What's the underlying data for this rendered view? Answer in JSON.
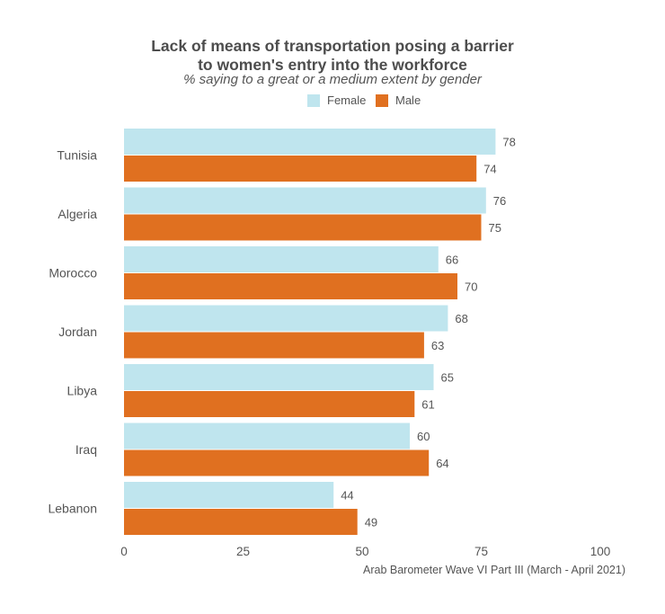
{
  "chart_data": {
    "type": "bar",
    "orientation": "horizontal",
    "title_line1": "Lack of means of transportation posing a barrier",
    "title_line2": "to women's entry into the workforce",
    "subtitle": "% saying to a great or a medium extent by gender",
    "categories": [
      "Tunisia",
      "Algeria",
      "Morocco",
      "Jordan",
      "Libya",
      "Iraq",
      "Lebanon"
    ],
    "series": [
      {
        "name": "Female",
        "color": "#bfe5ee",
        "values": [
          78,
          76,
          66,
          68,
          65,
          60,
          44
        ]
      },
      {
        "name": "Male",
        "color": "#e07020",
        "values": [
          74,
          75,
          70,
          63,
          61,
          64,
          49
        ]
      }
    ],
    "xlim": [
      0,
      100
    ],
    "xticks": [
      0,
      25,
      50,
      75,
      100
    ],
    "grid": false,
    "legend_position": "top",
    "caption": "Arab Barometer Wave VI Part III (March - April 2021)"
  }
}
